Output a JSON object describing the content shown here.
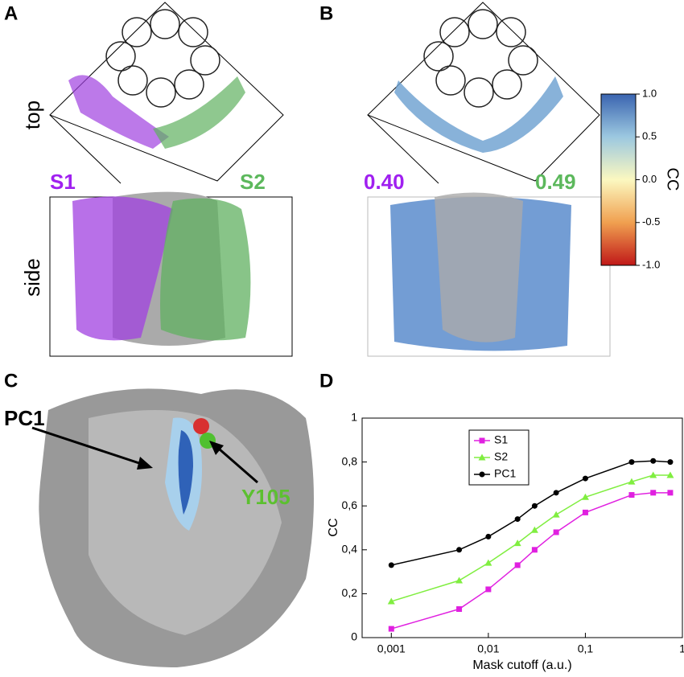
{
  "panels": {
    "A": {
      "label": "A",
      "top": "top",
      "side": "side",
      "s1": "S1",
      "s2": "S2"
    },
    "B": {
      "label": "B",
      "s1_cc": "0.40",
      "s2_cc": "0.49",
      "colorbar": {
        "title": "CC",
        "ticks": [
          "1.0",
          "0.5",
          "0.0",
          "-0.5",
          "-1.0"
        ]
      }
    },
    "C": {
      "label": "C",
      "pc1": "PC1",
      "residue": "Y105"
    },
    "D": {
      "label": "D"
    }
  },
  "chart_data": {
    "type": "line",
    "xlabel": "Mask cutoff (a.u.)",
    "ylabel": "CC",
    "x": [
      0.001,
      0.005,
      0.01,
      0.02,
      0.03,
      0.05,
      0.1,
      0.3,
      0.5,
      0.75
    ],
    "xscale": "log",
    "xlim": [
      0.0005,
      1
    ],
    "xticks": [
      {
        "value": 0.001,
        "label": "0,001"
      },
      {
        "value": 0.01,
        "label": "0,01"
      },
      {
        "value": 0.1,
        "label": "0,1"
      },
      1
    ],
    "ylim": [
      0,
      1
    ],
    "yticks": [
      0,
      {
        "value": 0.2,
        "label": "0,2"
      },
      {
        "value": 0.4,
        "label": "0,4"
      },
      {
        "value": 0.6,
        "label": "0,6"
      },
      {
        "value": 0.8,
        "label": "0,8"
      },
      1
    ],
    "legend": "upper left",
    "series": [
      {
        "name": "S1",
        "color": "#e020e0",
        "marker": "square",
        "values": [
          0.04,
          0.13,
          0.22,
          0.33,
          0.4,
          0.48,
          0.57,
          0.65,
          0.66,
          0.66
        ]
      },
      {
        "name": "S2",
        "color": "#80ee40",
        "marker": "triangle",
        "values": [
          0.165,
          0.26,
          0.34,
          0.43,
          0.49,
          0.56,
          0.64,
          0.71,
          0.74,
          0.74
        ]
      },
      {
        "name": "PC1",
        "color": "#000000",
        "marker": "circle",
        "values": [
          0.33,
          0.4,
          0.46,
          0.54,
          0.6,
          0.66,
          0.725,
          0.8,
          0.805,
          0.8
        ]
      }
    ]
  }
}
